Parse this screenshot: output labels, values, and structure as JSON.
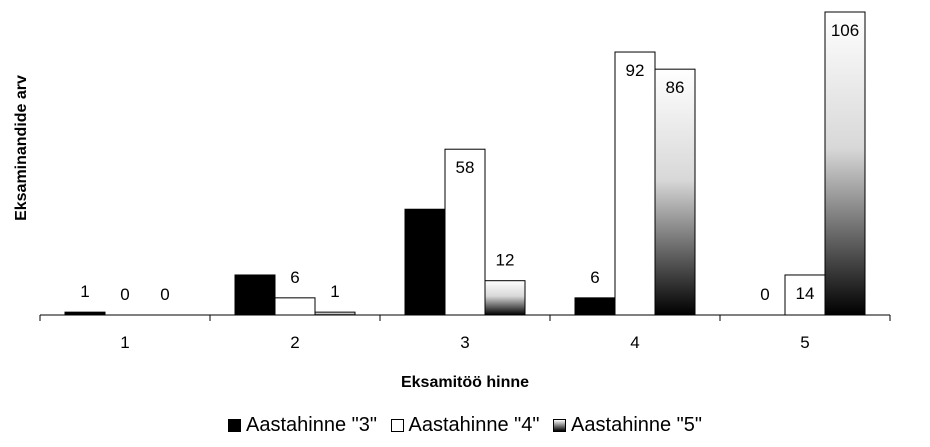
{
  "chart_data": {
    "type": "bar",
    "xlabel": "Eksamitöö hinne",
    "ylabel": "Eksaminandide arv",
    "categories": [
      "1",
      "2",
      "3",
      "4",
      "5"
    ],
    "series": [
      {
        "name": "Aastahinne \"3\"",
        "values": [
          1,
          14,
          37,
          6,
          0
        ],
        "fill": "solid-black"
      },
      {
        "name": "Aastahinne \"4\"",
        "values": [
          0,
          6,
          58,
          92,
          14
        ],
        "fill": "white"
      },
      {
        "name": "Aastahinne \"5\"",
        "values": [
          0,
          1,
          12,
          86,
          106
        ],
        "fill": "gradient-white-to-black"
      }
    ],
    "ylim": [
      0,
      106
    ],
    "grid": false,
    "legend_position": "bottom"
  },
  "colors": {
    "series1": "#000000",
    "series2": "#ffffff",
    "series3_top": "#ffffff",
    "series3_bottom": "#000000",
    "axis": "#000000"
  }
}
